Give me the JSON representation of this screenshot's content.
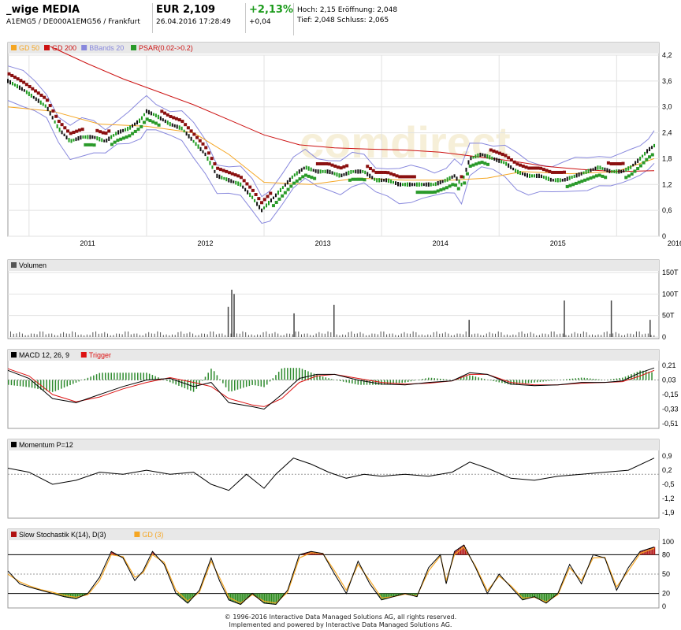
{
  "header": {
    "name": "_wige MEDIA",
    "ids": "A1EMG5 / DE000A1EMG56 / Frankfurt",
    "price": "EUR 2,109",
    "timestamp": "26.04.2016 17:28:49",
    "change_pct": "+2,13%",
    "change_abs": "+0,04",
    "line1": "Hoch: 2,15  Eröffnung: 2,048",
    "line2": "Tief: 2,048  Schluss: 2,065"
  },
  "watermark": "comdirect",
  "footer": {
    "line1": "© 1996-2016 Interactive Data Managed Solutions AG, all rights reserved.",
    "line2": "Implemented and powered by Interactive Data Managed Solutions AG."
  },
  "colors": {
    "gd50": "#f5a623",
    "gd200": "#cc1111",
    "bbands": "#8888dd",
    "psar_up": "#2a9a2a",
    "psar_down": "#8b1010",
    "macd": "#000000",
    "trigger": "#dd1111",
    "hist": "#2e8b2e",
    "stoch_k": "#000000",
    "stoch_d": "#f5a623"
  },
  "chart_data": [
    {
      "type": "line",
      "panel": "price",
      "legend": [
        "GD 50",
        "GD 200",
        "BBands 20",
        "PSAR(0.02->0.2)"
      ],
      "x_ticks": [
        "2011",
        "2012",
        "2013",
        "2014",
        "2015",
        "2016"
      ],
      "y_ticks": [
        "4,2",
        "3,6",
        "3,0",
        "2,4",
        "1,8",
        "1,2",
        "0,6",
        "0"
      ],
      "ylim": [
        0,
        4.2
      ],
      "series": [
        {
          "name": "Kurs",
          "x": [
            2010.82,
            2010.95,
            2011.05,
            2011.15,
            2011.25,
            2011.35,
            2011.45,
            2011.55,
            2011.65,
            2011.75,
            2011.85,
            2011.95,
            2012.0,
            2012.08,
            2012.2,
            2012.3,
            2012.4,
            2012.5,
            2012.6,
            2012.7,
            2012.8,
            2012.9,
            2012.98,
            2013.05,
            2013.15,
            2013.25,
            2013.35,
            2013.45,
            2013.55,
            2013.65,
            2013.75,
            2013.85,
            2013.95,
            2014.05,
            2014.15,
            2014.25,
            2014.35,
            2014.45,
            2014.55,
            2014.62,
            2014.68,
            2014.75,
            2014.85,
            2014.95,
            2015.05,
            2015.15,
            2015.25,
            2015.35,
            2015.45,
            2015.55,
            2015.65,
            2015.75,
            2015.85,
            2015.95,
            2016.05,
            2016.12,
            2016.2,
            2016.27,
            2016.32
          ],
          "values": [
            3.6,
            3.4,
            3.2,
            3.0,
            2.5,
            2.2,
            2.3,
            2.3,
            2.2,
            2.4,
            2.5,
            2.7,
            2.9,
            2.8,
            2.6,
            2.5,
            2.2,
            1.9,
            1.4,
            1.3,
            1.2,
            0.9,
            0.6,
            0.8,
            1.1,
            1.4,
            1.6,
            1.5,
            1.5,
            1.4,
            1.5,
            1.5,
            1.3,
            1.3,
            1.2,
            1.2,
            1.2,
            1.2,
            1.3,
            1.4,
            1.2,
            1.8,
            1.9,
            1.8,
            1.7,
            1.5,
            1.4,
            1.4,
            1.3,
            1.3,
            1.4,
            1.5,
            1.6,
            1.5,
            1.5,
            1.6,
            1.8,
            2.0,
            2.1
          ]
        },
        {
          "name": "GD 50",
          "x": [
            2010.82,
            2011.2,
            2011.6,
            2012.0,
            2012.4,
            2012.7,
            2013.0,
            2013.4,
            2013.8,
            2014.2,
            2014.6,
            2014.9,
            2015.2,
            2015.6,
            2016.0,
            2016.32
          ],
          "values": [
            3.0,
            2.9,
            2.6,
            2.55,
            2.4,
            1.9,
            1.25,
            1.2,
            1.35,
            1.3,
            1.3,
            1.35,
            1.5,
            1.45,
            1.5,
            1.8
          ]
        },
        {
          "name": "GD 200",
          "x": [
            2011.18,
            2011.5,
            2011.8,
            2012.1,
            2012.4,
            2012.7,
            2013.0,
            2013.3,
            2013.6,
            2013.9,
            2014.2,
            2014.5,
            2014.8,
            2015.1,
            2015.4,
            2015.7,
            2016.0,
            2016.32
          ],
          "values": [
            4.4,
            4.0,
            3.65,
            3.35,
            3.05,
            2.7,
            2.35,
            2.12,
            2.05,
            2.02,
            2.0,
            1.95,
            1.85,
            1.75,
            1.62,
            1.55,
            1.5,
            1.52
          ]
        }
      ]
    },
    {
      "type": "bar",
      "panel": "volume",
      "legend": [
        "Volumen"
      ],
      "y_ticks": [
        "150T",
        "100T",
        "50T",
        "0"
      ],
      "ylim": [
        0,
        150
      ],
      "spikes": [
        {
          "x": 2012.72,
          "value": 110
        },
        {
          "x": 2012.74,
          "value": 100
        },
        {
          "x": 2012.69,
          "value": 70
        },
        {
          "x": 2013.59,
          "value": 75
        },
        {
          "x": 2013.25,
          "value": 55
        },
        {
          "x": 2015.55,
          "value": 85
        },
        {
          "x": 2015.95,
          "value": 85
        },
        {
          "x": 2014.74,
          "value": 40
        },
        {
          "x": 2016.28,
          "value": 40
        }
      ]
    },
    {
      "type": "line",
      "panel": "macd",
      "legend": [
        "MACD 12, 26, 9",
        "Trigger"
      ],
      "y_ticks": [
        "0,21",
        "0,03",
        "-0,15",
        "-0,33",
        "-0,51"
      ],
      "ylim": [
        -0.55,
        0.25
      ],
      "x": [
        2010.82,
        2011.0,
        2011.2,
        2011.4,
        2011.6,
        2011.8,
        2012.0,
        2012.2,
        2012.4,
        2012.55,
        2012.7,
        2012.9,
        2013.0,
        2013.15,
        2013.3,
        2013.45,
        2013.6,
        2013.8,
        2014.0,
        2014.2,
        2014.4,
        2014.6,
        2014.75,
        2014.9,
        2015.1,
        2015.3,
        2015.5,
        2015.7,
        2015.9,
        2016.05,
        2016.2,
        2016.32
      ],
      "series": [
        {
          "name": "MACD 12, 26, 9",
          "values": [
            0.15,
            0.05,
            -0.2,
            -0.25,
            -0.15,
            -0.05,
            0.03,
            0.05,
            -0.05,
            0.0,
            -0.25,
            -0.3,
            -0.33,
            -0.15,
            0.05,
            0.1,
            0.1,
            0.03,
            -0.02,
            -0.03,
            0.0,
            0.02,
            0.12,
            0.1,
            -0.02,
            -0.04,
            -0.03,
            0.0,
            0.0,
            0.02,
            0.12,
            0.18
          ]
        },
        {
          "name": "Trigger",
          "values": [
            0.17,
            0.08,
            -0.15,
            -0.24,
            -0.18,
            -0.08,
            0.0,
            0.06,
            0.0,
            -0.05,
            -0.2,
            -0.28,
            -0.3,
            -0.2,
            0.0,
            0.08,
            0.1,
            0.05,
            0.0,
            -0.02,
            -0.01,
            0.02,
            0.1,
            0.1,
            0.0,
            -0.03,
            -0.03,
            -0.01,
            0.0,
            0.01,
            0.08,
            0.15
          ]
        }
      ]
    },
    {
      "type": "line",
      "panel": "momentum",
      "legend": [
        "Momentum P=12"
      ],
      "y_ticks": [
        "0,9",
        "0,2",
        "-0,5",
        "-1,2",
        "-1,9"
      ],
      "ylim": [
        -2.1,
        1.1
      ],
      "x": [
        2010.82,
        2011.0,
        2011.2,
        2011.4,
        2011.6,
        2011.8,
        2012.0,
        2012.2,
        2012.4,
        2012.55,
        2012.7,
        2012.85,
        2013.0,
        2013.1,
        2013.25,
        2013.4,
        2013.55,
        2013.7,
        2013.85,
        2014.0,
        2014.2,
        2014.4,
        2014.6,
        2014.75,
        2014.9,
        2015.1,
        2015.3,
        2015.5,
        2015.7,
        2015.9,
        2016.1,
        2016.32
      ],
      "values": [
        0.3,
        0.1,
        -0.5,
        -0.3,
        0.1,
        0.0,
        0.2,
        0.0,
        0.1,
        -0.5,
        -0.8,
        0.0,
        -0.7,
        0.0,
        0.8,
        0.5,
        0.1,
        -0.2,
        0.0,
        -0.1,
        0.0,
        -0.1,
        0.1,
        0.6,
        0.3,
        -0.2,
        -0.3,
        -0.1,
        0.0,
        0.1,
        0.2,
        0.8
      ]
    },
    {
      "type": "line",
      "panel": "stochastic",
      "legend": [
        "Slow Stochastik K(14), D(3)",
        "GD (3)"
      ],
      "y_ticks": [
        "100",
        "80",
        "50",
        "20",
        "0"
      ],
      "ylim": [
        0,
        100
      ],
      "reference_lines": [
        80,
        50,
        20
      ],
      "x": [
        2010.82,
        2010.92,
        2011.0,
        2011.1,
        2011.2,
        2011.3,
        2011.4,
        2011.5,
        2011.6,
        2011.7,
        2011.8,
        2011.9,
        2011.97,
        2012.05,
        2012.15,
        2012.25,
        2012.35,
        2012.45,
        2012.55,
        2012.62,
        2012.7,
        2012.8,
        2012.9,
        2013.0,
        2013.1,
        2013.2,
        2013.3,
        2013.4,
        2013.5,
        2013.6,
        2013.7,
        2013.8,
        2013.9,
        2014.0,
        2014.1,
        2014.2,
        2014.3,
        2014.4,
        2014.5,
        2014.55,
        2014.62,
        2014.7,
        2014.8,
        2014.9,
        2015.0,
        2015.1,
        2015.2,
        2015.3,
        2015.4,
        2015.5,
        2015.6,
        2015.7,
        2015.8,
        2015.9,
        2016.0,
        2016.1,
        2016.2,
        2016.32
      ],
      "series": [
        {
          "name": "Slow Stochastik K(14), D(3)",
          "values": [
            55,
            35,
            30,
            25,
            20,
            15,
            12,
            20,
            45,
            85,
            75,
            40,
            55,
            85,
            65,
            20,
            5,
            25,
            75,
            40,
            10,
            3,
            20,
            5,
            3,
            25,
            80,
            85,
            82,
            50,
            20,
            70,
            35,
            10,
            15,
            20,
            15,
            60,
            80,
            35,
            85,
            95,
            60,
            20,
            50,
            30,
            10,
            15,
            5,
            20,
            65,
            35,
            80,
            75,
            25,
            60,
            85,
            92
          ]
        },
        {
          "name": "GD (3)",
          "values": [
            50,
            38,
            32,
            26,
            22,
            17,
            14,
            18,
            40,
            80,
            77,
            45,
            52,
            80,
            68,
            25,
            8,
            22,
            70,
            45,
            14,
            5,
            18,
            8,
            5,
            22,
            75,
            83,
            82,
            55,
            25,
            65,
            40,
            13,
            15,
            19,
            16,
            55,
            78,
            40,
            80,
            92,
            62,
            24,
            47,
            32,
            13,
            14,
            7,
            18,
            60,
            40,
            75,
            76,
            30,
            55,
            82,
            90
          ]
        }
      ]
    }
  ]
}
